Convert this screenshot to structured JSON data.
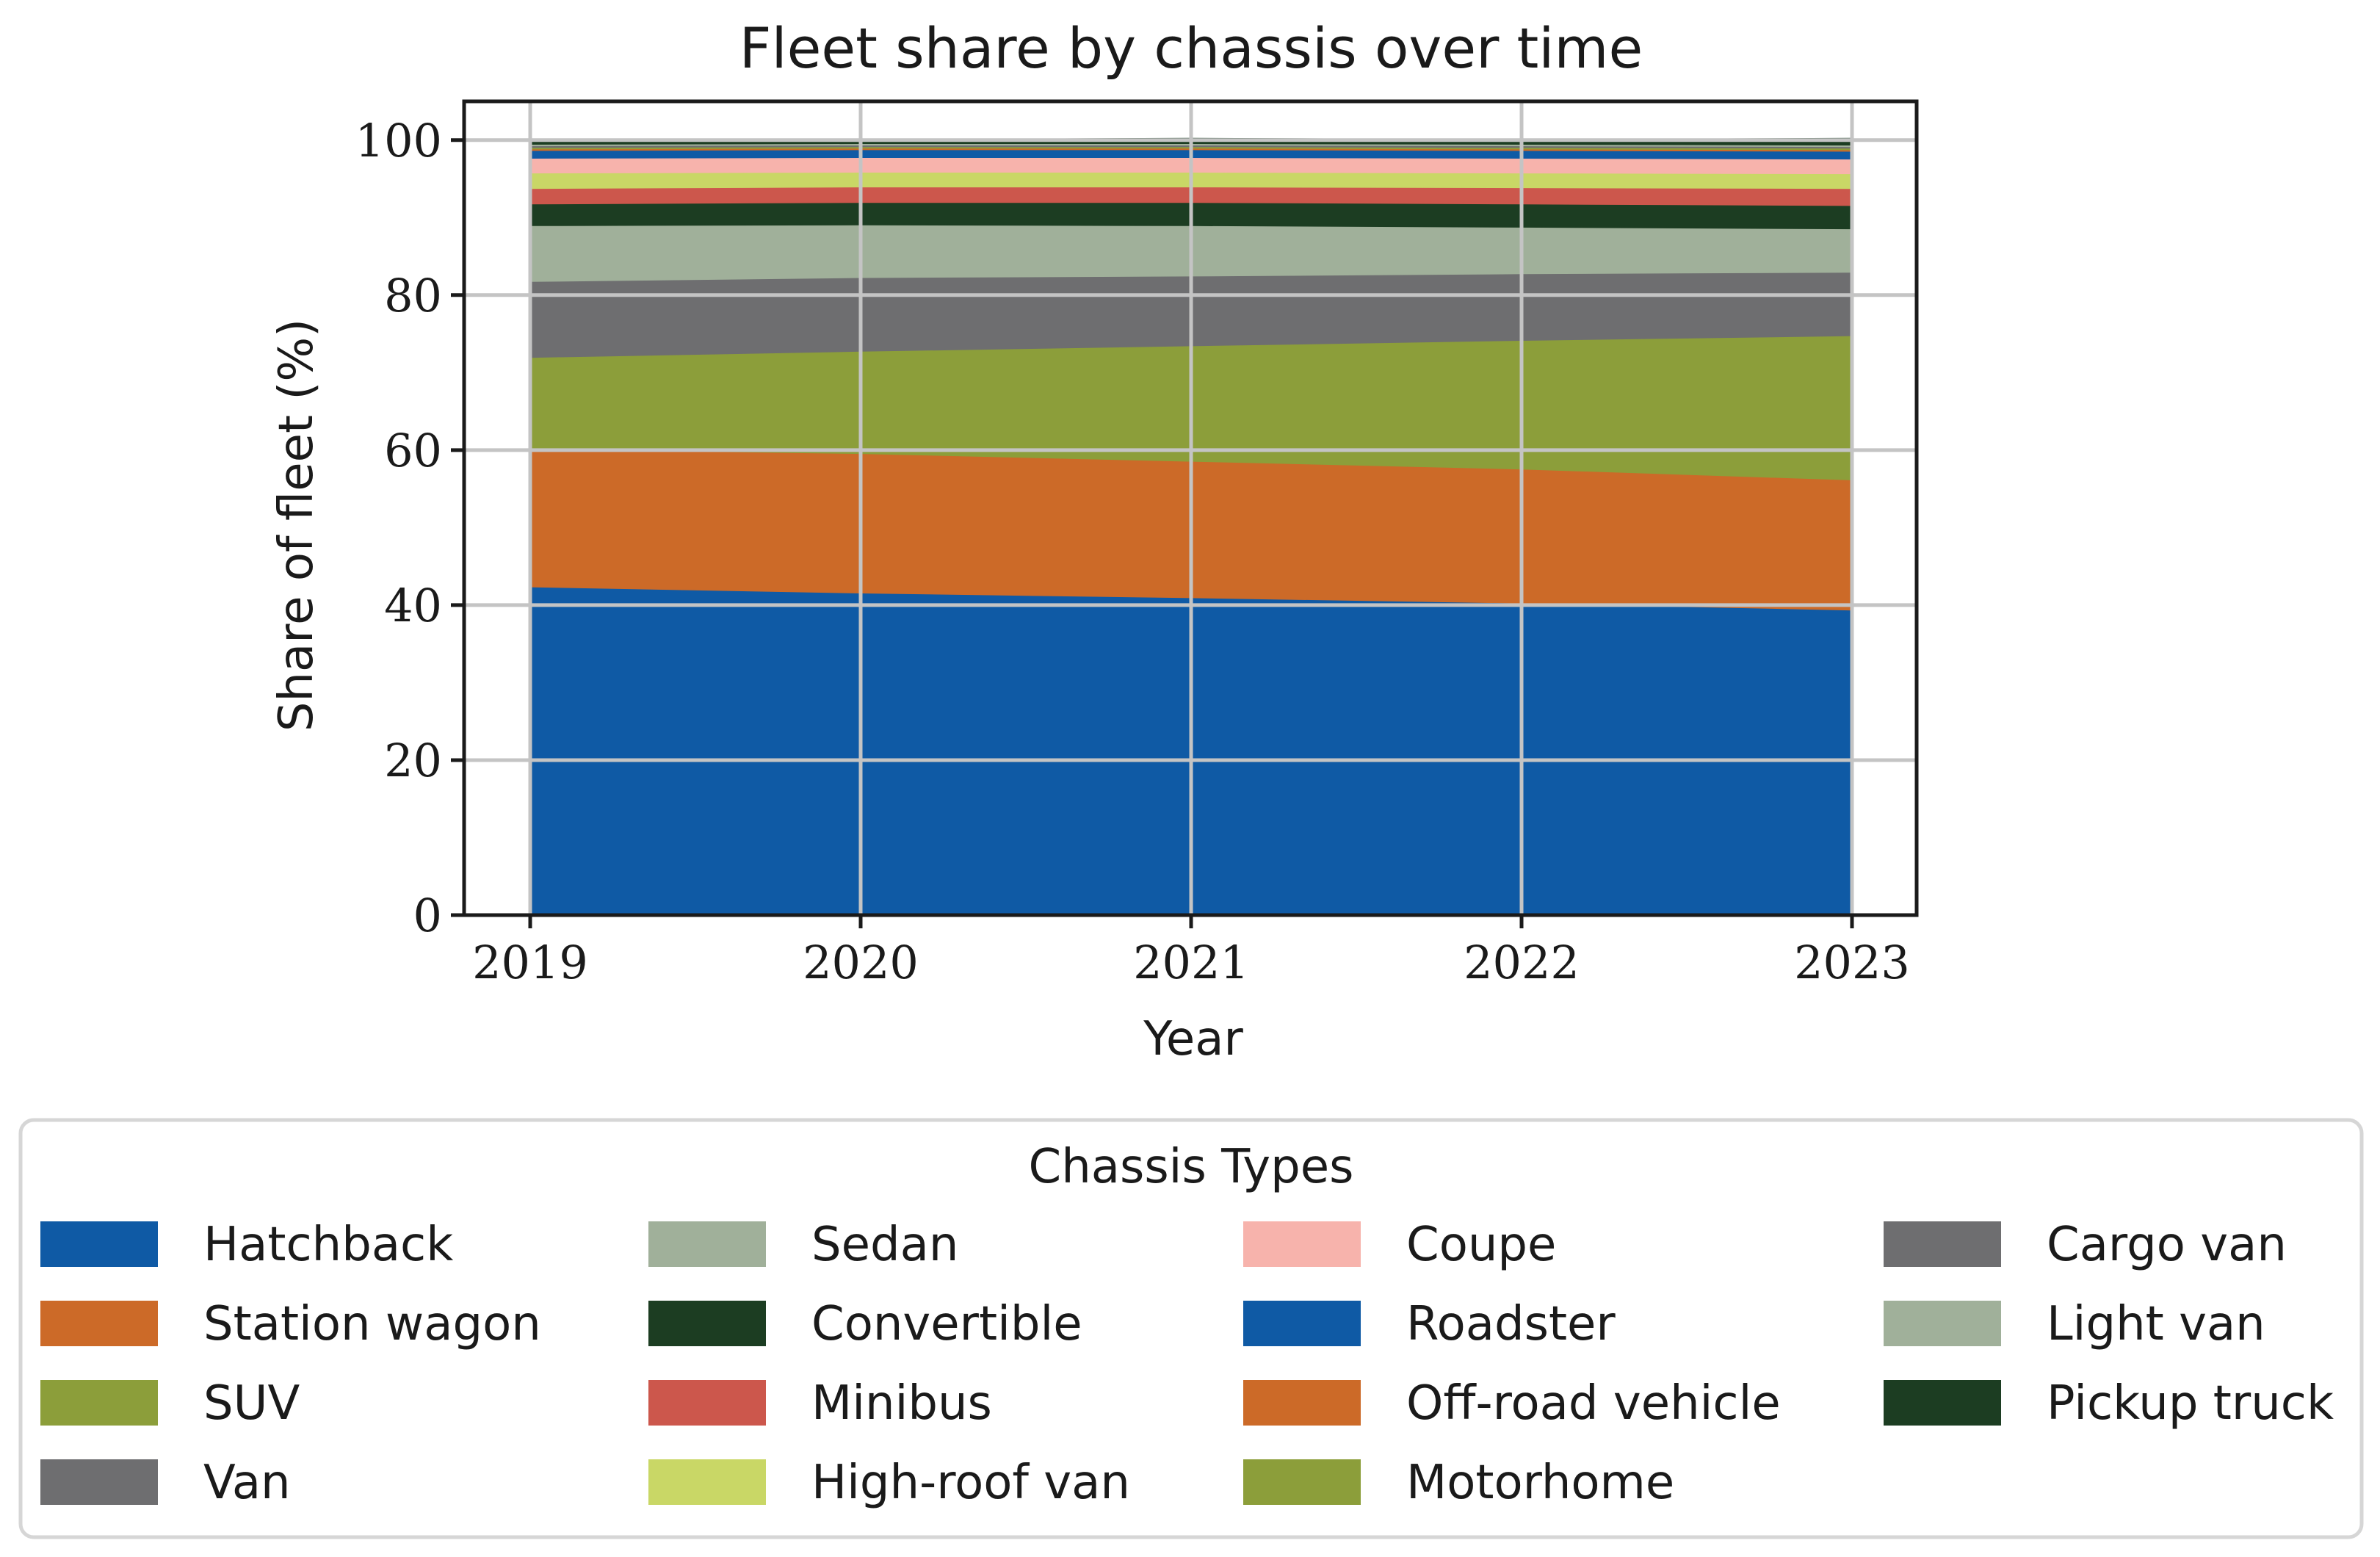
{
  "chart_data": {
    "type": "area",
    "stacked": true,
    "title": "Fleet share by chassis over time",
    "xlabel": "Year",
    "ylabel": "Share of fleet (%)",
    "x": [
      "2019",
      "2020",
      "2021",
      "2022",
      "2023"
    ],
    "ylim": [
      0,
      105
    ],
    "yticks": [
      "0",
      "20",
      "40",
      "60",
      "80",
      "100"
    ],
    "grid": true,
    "legend_title": "Chassis Types",
    "legend_location": "below",
    "series": [
      {
        "name": "Hatchback",
        "color": "#0f5aa5",
        "values": [
          42.4,
          41.6,
          41.0,
          40.3,
          39.4
        ]
      },
      {
        "name": "Station wagon",
        "color": "#cc6a28",
        "values": [
          17.8,
          18.0,
          17.6,
          17.3,
          16.8
        ]
      },
      {
        "name": "SUV",
        "color": "#8c9e3a",
        "values": [
          11.8,
          13.2,
          14.9,
          16.6,
          18.6
        ]
      },
      {
        "name": "Van",
        "color": "#6e6e70",
        "values": [
          9.8,
          9.5,
          9.0,
          8.6,
          8.2
        ]
      },
      {
        "name": "Sedan",
        "color": "#a0b09a",
        "values": [
          7.2,
          6.8,
          6.5,
          6.0,
          5.6
        ]
      },
      {
        "name": "Convertible",
        "color": "#1c3d22",
        "values": [
          2.8,
          2.9,
          3.0,
          3.0,
          3.0
        ]
      },
      {
        "name": "Minibus",
        "color": "#cc574c",
        "values": [
          2.0,
          2.0,
          2.0,
          2.1,
          2.2
        ]
      },
      {
        "name": "High-roof van",
        "color": "#c9d766",
        "values": [
          2.0,
          1.9,
          1.9,
          1.9,
          1.9
        ]
      },
      {
        "name": "Coupe",
        "color": "#f7b3ac",
        "values": [
          1.9,
          1.9,
          1.9,
          1.9,
          1.9
        ]
      },
      {
        "name": "Roadster",
        "color": "#0f5aa5",
        "values": [
          1.0,
          1.0,
          1.0,
          1.0,
          1.0
        ]
      },
      {
        "name": "Off-road vehicle",
        "color": "#cc6a28",
        "values": [
          0.2,
          0.2,
          0.2,
          0.2,
          0.2
        ]
      },
      {
        "name": "Motorhome",
        "color": "#8c9e3a",
        "values": [
          0.2,
          0.2,
          0.2,
          0.2,
          0.2
        ]
      },
      {
        "name": "Cargo van",
        "color": "#6e6e70",
        "values": [
          0.2,
          0.2,
          0.2,
          0.2,
          0.2
        ]
      },
      {
        "name": "Light van",
        "color": "#a0b09a",
        "values": [
          0.2,
          0.2,
          0.2,
          0.2,
          0.2
        ]
      },
      {
        "name": "Pickup truck",
        "color": "#1c3d22",
        "values": [
          0.5,
          0.4,
          0.6,
          0.5,
          0.8
        ]
      }
    ]
  }
}
